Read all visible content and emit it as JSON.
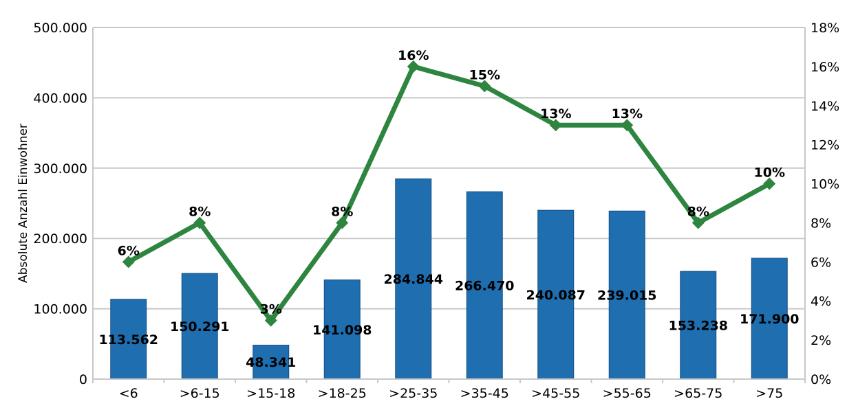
{
  "chart_data": {
    "type": "bar",
    "title": "",
    "categories": [
      "<6",
      ">6-15",
      ">15-18",
      ">18-25",
      ">25-35",
      ">35-45",
      ">45-55",
      ">55-65",
      ">65-75",
      ">75"
    ],
    "series": [
      {
        "type": "bar",
        "axis": "left",
        "color": "#1f6eb0",
        "values": [
          113562,
          150291,
          48341,
          141098,
          284844,
          266470,
          240087,
          239015,
          153238,
          171900
        ],
        "value_labels": [
          "113.562",
          "150.291",
          "48.341",
          "141.098",
          "284.844",
          "266.470",
          "240.087",
          "239.015",
          "153.238",
          "171.900"
        ]
      },
      {
        "type": "line",
        "axis": "right",
        "color": "#2e8540",
        "marker": "diamond",
        "values": [
          6,
          8,
          3,
          8,
          16,
          15,
          13,
          13,
          8,
          10
        ],
        "value_labels": [
          "6%",
          "8%",
          "3%",
          "8%",
          "16%",
          "15%",
          "13%",
          "13%",
          "8%",
          "10%"
        ]
      }
    ],
    "ylabel": "Absolute Anzahl Einwohner",
    "y2label": "",
    "ylim": [
      0,
      500000
    ],
    "y2lim": [
      0,
      18
    ],
    "yticks": [
      "0",
      "100.000",
      "200.000",
      "300.000",
      "400.000",
      "500.000"
    ],
    "yticks_values": [
      0,
      100000,
      200000,
      300000,
      400000,
      500000
    ],
    "y2ticks": [
      "0%",
      "2%",
      "4%",
      "6%",
      "8%",
      "10%",
      "12%",
      "14%",
      "16%",
      "18%"
    ],
    "y2ticks_values": [
      0,
      2,
      4,
      6,
      8,
      10,
      12,
      14,
      16,
      18
    ],
    "grid": true,
    "legend": "none"
  }
}
